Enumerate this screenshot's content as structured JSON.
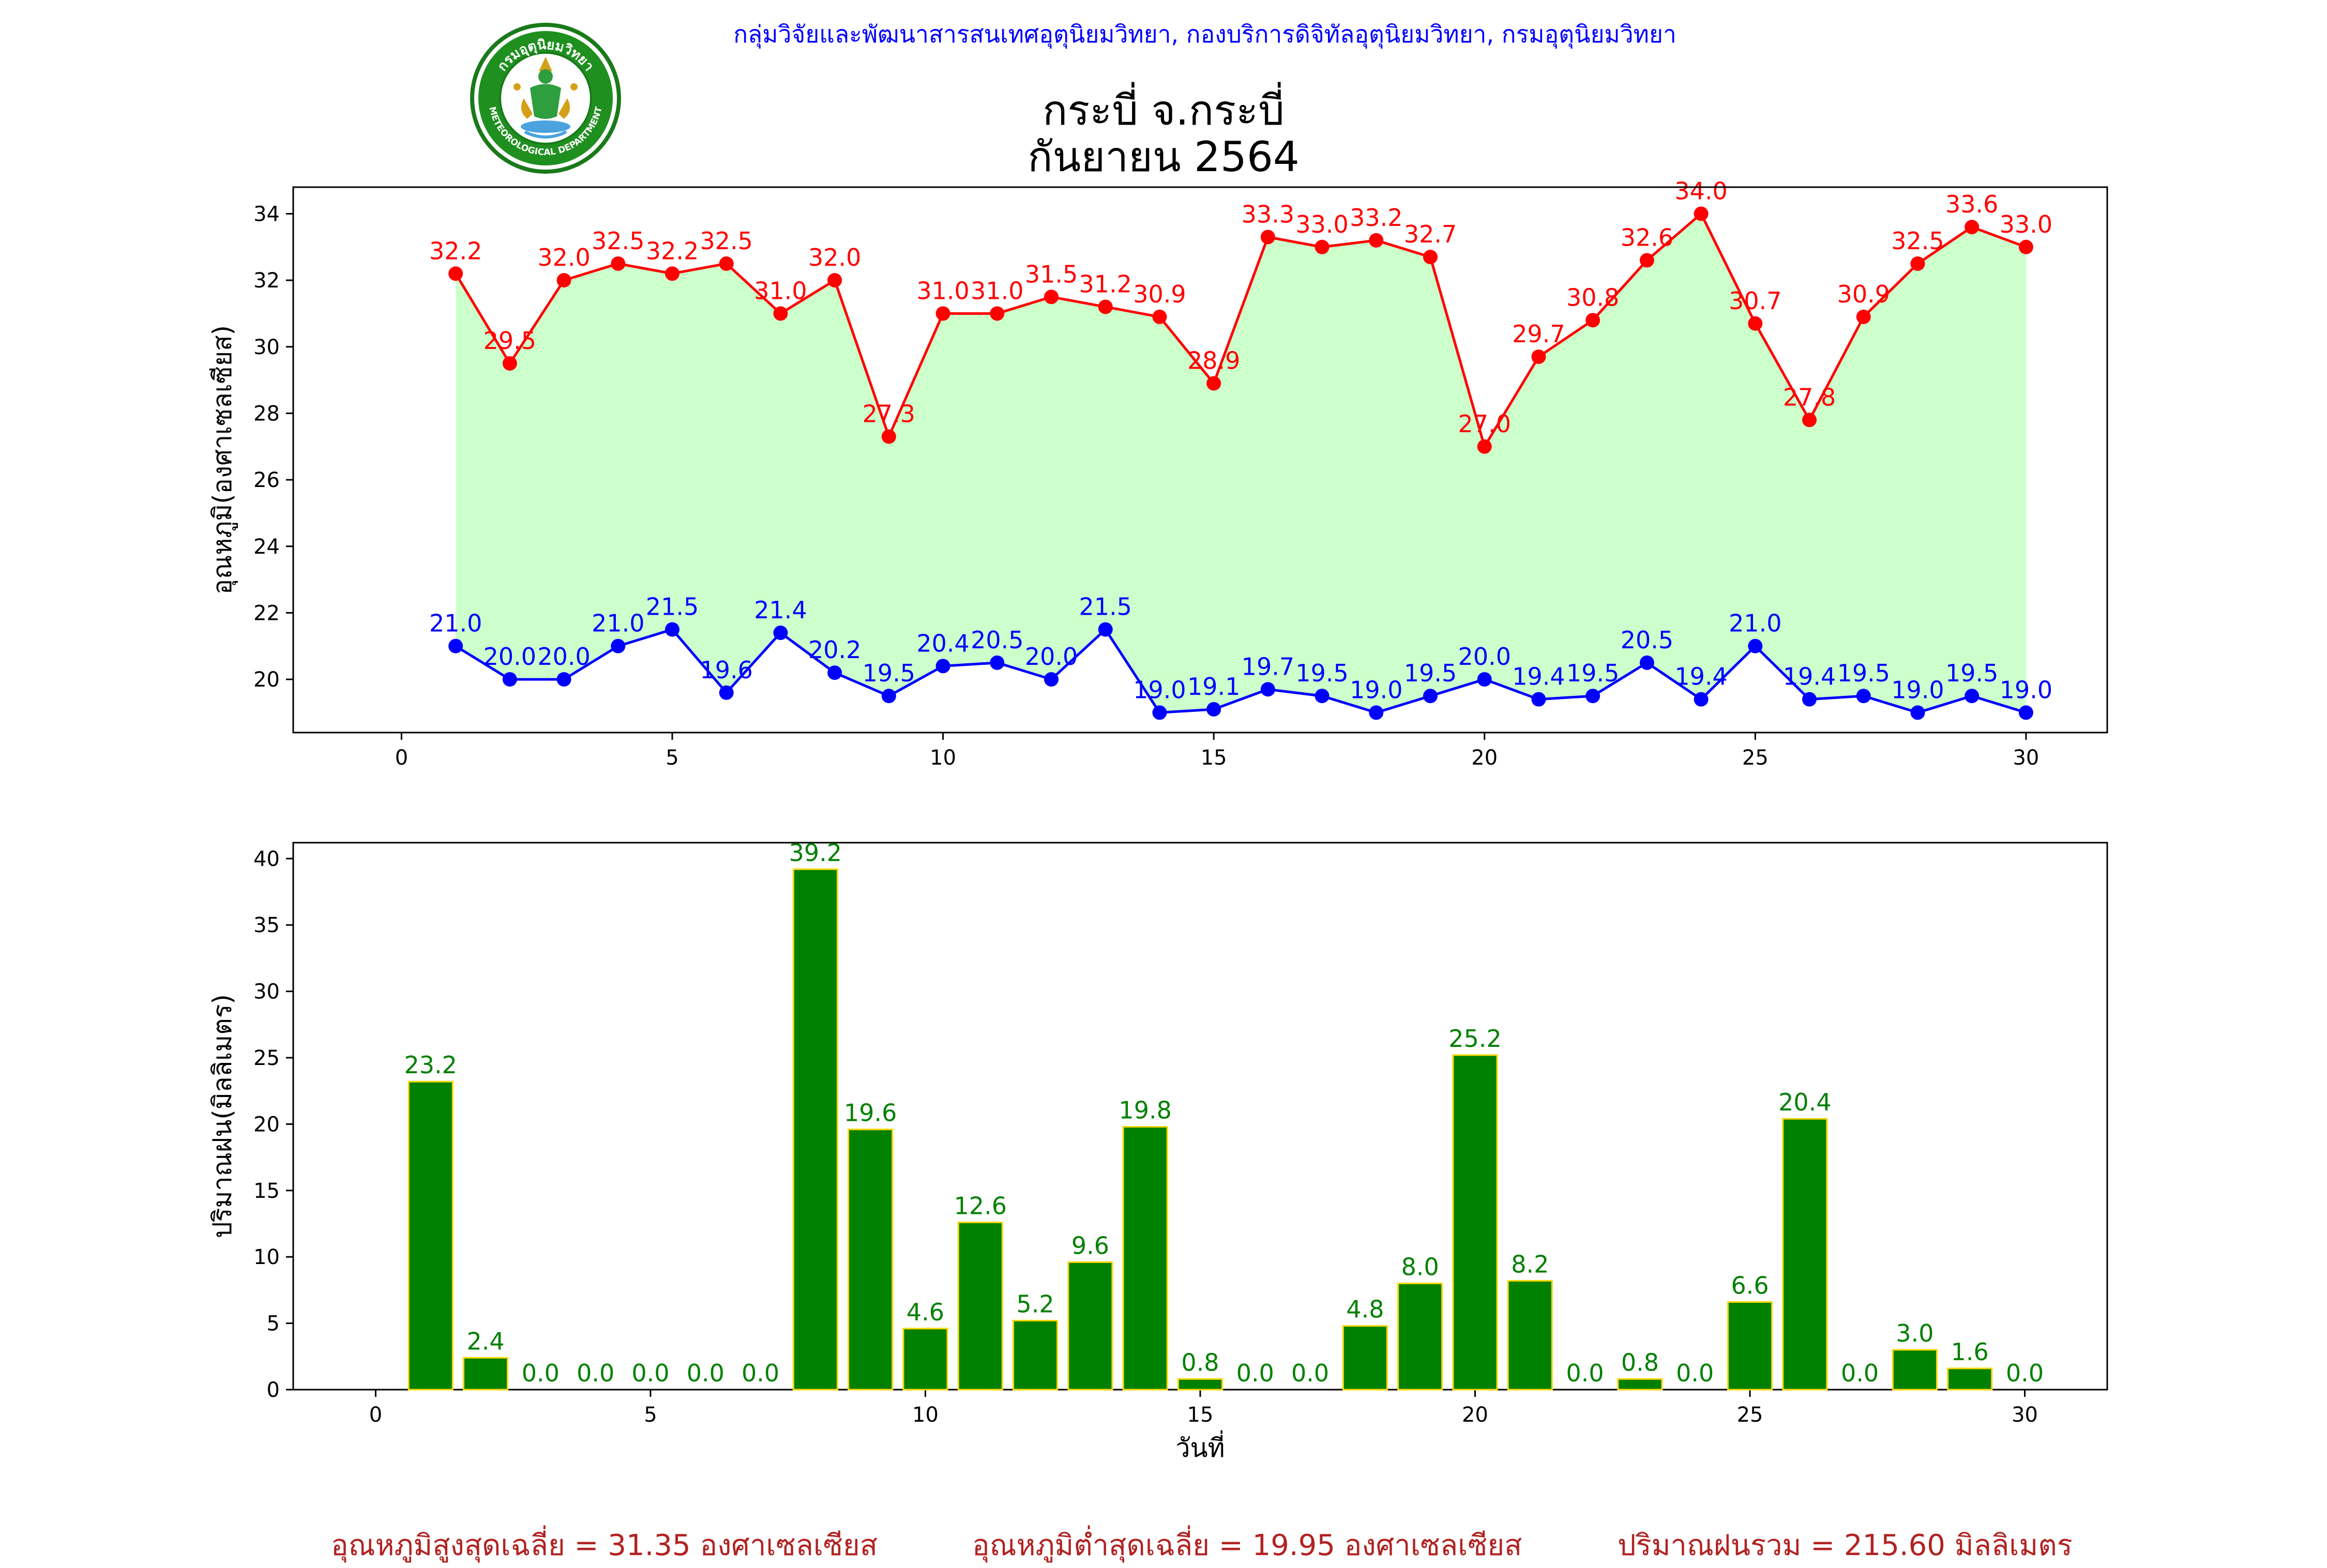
{
  "header": {
    "org_line": "กลุ่มวิจัยและพัฒนาสารสนเทศอุตุนิยมวิทยา, กองบริการดิจิทัลอุตุนิยมวิทยา, กรมอุตุนิยมวิทยา",
    "station": "กระบี่ จ.กระบี่",
    "period": "กันยายน 2564",
    "logo_top_text": "กรมอุตุนิยมวิทยา",
    "logo_bottom_text": "METEOROLOGICAL DEPARTMENT"
  },
  "summary": {
    "avg_max": "อุณหภูมิสูงสุดเฉลี่ย = 31.35 องศาเซลเซียส",
    "avg_min": "อุณหภูมิต่ำสุดเฉลี่ย = 19.95 องศาเซลเซียส",
    "total_rain": "ปริมาณฝนรวม = 215.60 มิลลิเมตร"
  },
  "colors": {
    "max_line": "#ff0000",
    "min_line": "#0000ff",
    "fill": "#ccffcc",
    "bar": "#008000",
    "bar_edge": "#ffd700",
    "bar_label": "#008000",
    "summary_text": "#b22222",
    "org_text": "#0000ff"
  },
  "chart_data": [
    {
      "type": "line",
      "ylabel": "อุณหภูมิ(องศาเซลเซียส)",
      "xlabel": "",
      "xlim": [
        -2,
        31.5
      ],
      "ylim": [
        18.4,
        34.8
      ],
      "xticks": [
        0,
        5,
        10,
        15,
        20,
        25,
        30
      ],
      "yticks": [
        20,
        22,
        24,
        26,
        28,
        30,
        32,
        34
      ],
      "x": [
        1,
        2,
        3,
        4,
        5,
        6,
        7,
        8,
        9,
        10,
        11,
        12,
        13,
        14,
        15,
        16,
        17,
        18,
        19,
        20,
        21,
        22,
        23,
        24,
        25,
        26,
        27,
        28,
        29,
        30
      ],
      "series": [
        {
          "values": [
            32.2,
            29.5,
            32.0,
            32.5,
            32.2,
            32.5,
            31.0,
            32.0,
            27.3,
            31.0,
            31.0,
            31.5,
            31.2,
            30.9,
            28.9,
            33.3,
            33.0,
            33.2,
            32.7,
            27.0,
            29.7,
            30.8,
            32.6,
            34.0,
            30.7,
            27.8,
            30.9,
            32.5,
            33.6,
            33.0
          ]
        },
        {
          "values": [
            21.0,
            20.0,
            20.0,
            21.0,
            21.5,
            19.6,
            21.4,
            20.2,
            19.5,
            20.4,
            20.5,
            20.0,
            21.5,
            19.0,
            19.1,
            19.7,
            19.5,
            19.0,
            19.5,
            20.0,
            19.4,
            19.5,
            20.5,
            19.4,
            21.0,
            19.4,
            19.5,
            19.0,
            19.5,
            19.0
          ]
        }
      ],
      "fill_between": true,
      "grid": false
    },
    {
      "type": "bar",
      "ylabel": "ปริมาณฝน(มิลลิเมตร)",
      "xlabel": "วันที่",
      "xlim": [
        -1.5,
        31.5
      ],
      "ylim": [
        0,
        41.2
      ],
      "xticks": [
        0,
        5,
        10,
        15,
        20,
        25,
        30
      ],
      "yticks": [
        0,
        5,
        10,
        15,
        20,
        25,
        30,
        35,
        40
      ],
      "x": [
        1,
        2,
        3,
        4,
        5,
        6,
        7,
        8,
        9,
        10,
        11,
        12,
        13,
        14,
        15,
        16,
        17,
        18,
        19,
        20,
        21,
        22,
        23,
        24,
        25,
        26,
        27,
        28,
        29,
        30
      ],
      "values": [
        23.2,
        2.4,
        0.0,
        0.0,
        0.0,
        0.0,
        0.0,
        39.2,
        19.6,
        4.6,
        12.6,
        5.2,
        9.6,
        19.8,
        0.8,
        0.0,
        0.0,
        4.8,
        8.0,
        25.2,
        8.2,
        0.0,
        0.8,
        0.0,
        6.6,
        20.4,
        0.0,
        3.0,
        1.6,
        0.0
      ],
      "grid": false
    }
  ]
}
